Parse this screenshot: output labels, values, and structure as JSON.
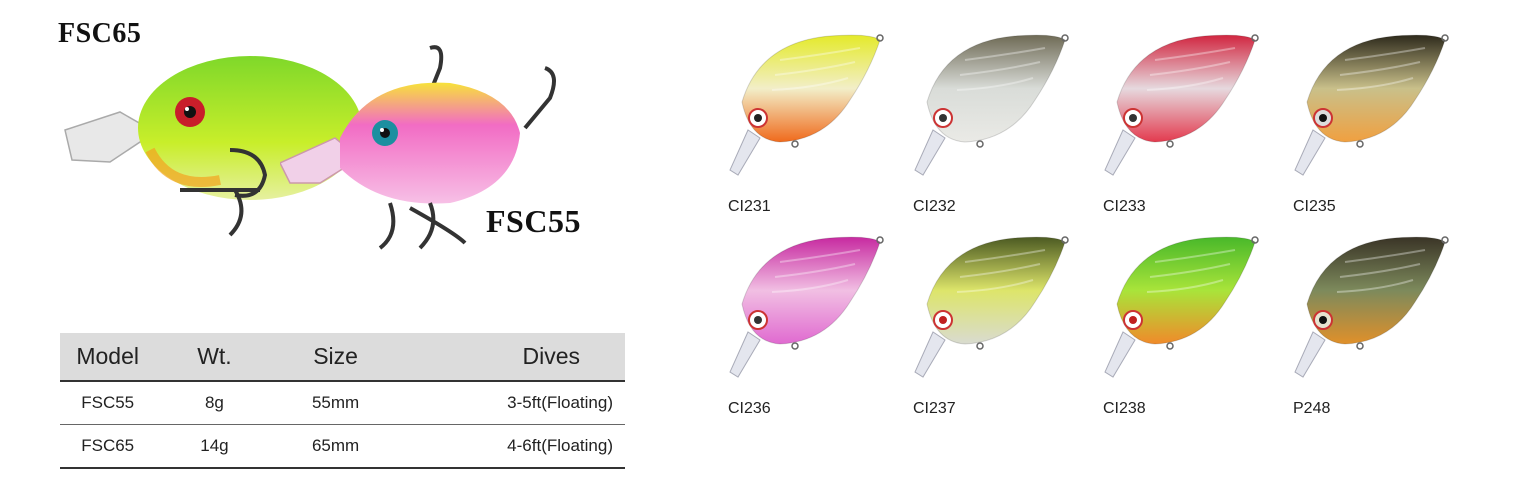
{
  "models": {
    "large_label": "FSC65",
    "small_label": "FSC55"
  },
  "spec_table": {
    "headers": [
      "Model",
      "Wt.",
      "Size",
      "Dives"
    ],
    "rows": [
      [
        "FSC55",
        "8g",
        "55mm",
        "3-5ft(Floating)"
      ],
      [
        "FSC65",
        "14g",
        "65mm",
        "4-6ft(Floating)"
      ]
    ]
  },
  "colors": {
    "items": [
      {
        "code": "CI231",
        "top": "#e4ea2a",
        "mid": "#f2eec8",
        "belly": "#f06a1c",
        "eye": "#ffffff",
        "pupil": "#222222"
      },
      {
        "code": "CI232",
        "top": "#6e6a55",
        "mid": "#d9dcd8",
        "belly": "#eaeae6",
        "eye": "#ffffff",
        "pupil": "#333333"
      },
      {
        "code": "CI233",
        "top": "#d12640",
        "mid": "#e6d9de",
        "belly": "#e33a4e",
        "eye": "#ffffff",
        "pupil": "#333333"
      },
      {
        "code": "CI235",
        "top": "#2e2a1c",
        "mid": "#c9c08a",
        "belly": "#f0a040",
        "eye": "#dcdcdc",
        "pupil": "#111111"
      },
      {
        "code": "CI236",
        "top": "#c72aa0",
        "mid": "#f1bfe3",
        "belly": "#e06ad0",
        "eye": "#ffffff",
        "pupil": "#333333"
      },
      {
        "code": "CI237",
        "top": "#4c5a22",
        "mid": "#dde56a",
        "belly": "#d9dbd0",
        "eye": "#ffffff",
        "pupil": "#c02020"
      },
      {
        "code": "CI238",
        "top": "#49b82a",
        "mid": "#a9e43a",
        "belly": "#f08a2a",
        "eye": "#ffffff",
        "pupil": "#c02020"
      },
      {
        "code": "P248",
        "top": "#3a3426",
        "mid": "#7d8a5c",
        "belly": "#e0902a",
        "eye": "#e6e3d0",
        "pupil": "#111111"
      }
    ]
  },
  "hero_colors": {
    "large": {
      "body": "#b6e62a",
      "top": "#7fd82a",
      "eye": "#c81e2a"
    },
    "small": {
      "body": "#f06bc2",
      "top": "#f7e23a",
      "eye": "#1c8fa0"
    }
  }
}
